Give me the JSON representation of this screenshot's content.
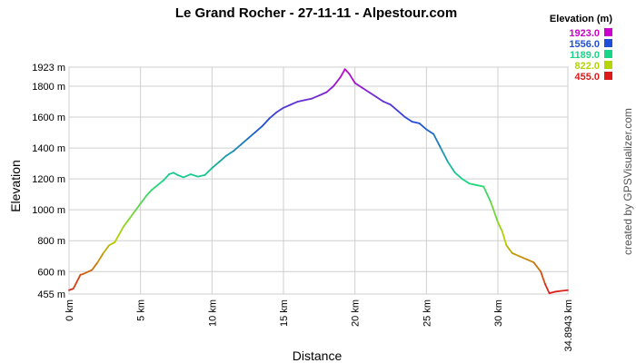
{
  "chart_data": {
    "type": "line",
    "title": "Le Grand Rocher - 27-11-11 - Alpestour.com",
    "xlabel": "Distance",
    "ylabel": "Elevation",
    "credit": "created by GPSVisualizer.com",
    "xlim": [
      0,
      34.8943
    ],
    "ylim": [
      455,
      1923
    ],
    "x_ticks": [
      {
        "v": 0,
        "label": "0 km"
      },
      {
        "v": 5,
        "label": "5 km"
      },
      {
        "v": 10,
        "label": "10 km"
      },
      {
        "v": 15,
        "label": "15 km"
      },
      {
        "v": 20,
        "label": "20 km"
      },
      {
        "v": 25,
        "label": "25 km"
      },
      {
        "v": 30,
        "label": "30 km"
      },
      {
        "v": 34.8943,
        "label": "34.8943 km"
      }
    ],
    "y_ticks": [
      {
        "v": 455,
        "label": "455 m"
      },
      {
        "v": 600,
        "label": "600 m"
      },
      {
        "v": 800,
        "label": "800 m"
      },
      {
        "v": 1000,
        "label": "1000 m"
      },
      {
        "v": 1200,
        "label": "1200 m"
      },
      {
        "v": 1400,
        "label": "1400 m"
      },
      {
        "v": 1600,
        "label": "1600 m"
      },
      {
        "v": 1800,
        "label": "1800 m"
      },
      {
        "v": 1923,
        "label": "1923 m"
      }
    ],
    "grid": true,
    "legend": {
      "title": "Elevation (m)",
      "placement": "top-right",
      "items": [
        {
          "label": "1923.0",
          "color": "#cc00cc"
        },
        {
          "label": "1556.0",
          "color": "#1f4fd8"
        },
        {
          "label": "1189.0",
          "color": "#19d687"
        },
        {
          "label": "822.0",
          "color": "#b5d400"
        },
        {
          "label": "455.0",
          "color": "#dd1a1a"
        }
      ]
    },
    "color_stops": [
      {
        "elev": 455,
        "color": "#dd1a1a"
      },
      {
        "elev": 822,
        "color": "#b5d400"
      },
      {
        "elev": 1189,
        "color": "#19d687"
      },
      {
        "elev": 1556,
        "color": "#1f4fd8"
      },
      {
        "elev": 1923,
        "color": "#cc00cc"
      }
    ],
    "series": [
      {
        "x": [
          0,
          0.3,
          0.8,
          1.0,
          1.6,
          2.0,
          2.4,
          2.8,
          3.2,
          3.5,
          3.8,
          4.2,
          4.6,
          5.0,
          5.4,
          5.8,
          6.2,
          6.6,
          7.0,
          7.3,
          7.6,
          8.0,
          8.5,
          9.0,
          9.5,
          10.0,
          10.5,
          11.0,
          11.5,
          12.0,
          12.5,
          13.0,
          13.5,
          14.0,
          14.5,
          15.0,
          15.5,
          16.0,
          16.5,
          17.0,
          17.5,
          18.0,
          18.5,
          19.0,
          19.3,
          19.6,
          20.0,
          20.5,
          21.0,
          21.5,
          22.0,
          22.5,
          23.0,
          23.5,
          24.0,
          24.5,
          25.0,
          25.5,
          26.0,
          26.5,
          27.0,
          27.5,
          28.0,
          28.5,
          29.0,
          29.5,
          30.0,
          30.3,
          30.6,
          31.0,
          31.5,
          32.0,
          32.5,
          33.0,
          33.3,
          33.6,
          34.0,
          34.4,
          34.8943
        ],
        "y": [
          480,
          490,
          580,
          585,
          610,
          660,
          720,
          770,
          790,
          840,
          890,
          940,
          990,
          1040,
          1090,
          1130,
          1160,
          1190,
          1230,
          1240,
          1225,
          1210,
          1230,
          1215,
          1225,
          1270,
          1310,
          1350,
          1380,
          1420,
          1460,
          1500,
          1540,
          1590,
          1630,
          1660,
          1680,
          1700,
          1710,
          1720,
          1740,
          1760,
          1800,
          1860,
          1910,
          1880,
          1820,
          1790,
          1760,
          1730,
          1700,
          1680,
          1640,
          1600,
          1570,
          1560,
          1520,
          1490,
          1400,
          1310,
          1240,
          1200,
          1170,
          1160,
          1150,
          1050,
          920,
          860,
          770,
          720,
          700,
          680,
          660,
          600,
          520,
          460,
          470,
          475,
          480
        ]
      }
    ]
  }
}
